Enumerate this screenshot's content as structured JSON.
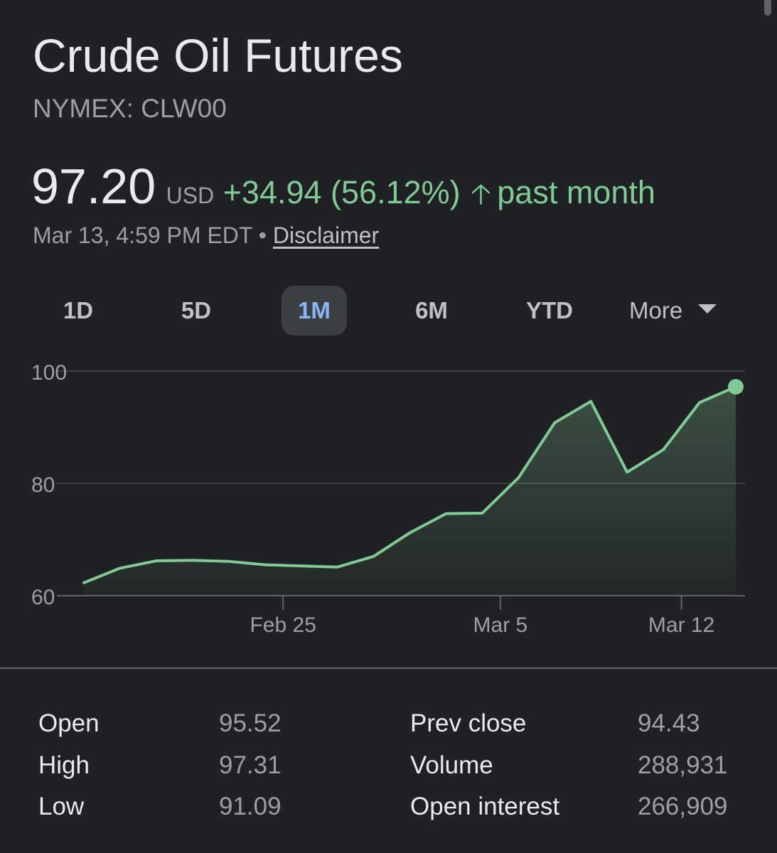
{
  "header": {
    "title": "Crude Oil Futures",
    "ticker": "NYMEX: CLW00"
  },
  "quote": {
    "price": "97.20",
    "currency": "USD",
    "change": "+34.94 (56.12%)",
    "direction_icon": "arrow-up-icon",
    "period": "past month",
    "timestamp": "Mar 13, 4:59 PM EDT",
    "separator": "•",
    "disclaimer": "Disclaimer"
  },
  "range_tabs": {
    "items": [
      "1D",
      "5D",
      "1M",
      "6M",
      "YTD"
    ],
    "active": "1M",
    "more_label": "More",
    "more_icon": "caret-down-icon"
  },
  "colors": {
    "background": "#202124",
    "positive": "#81c995",
    "active_tab_text": "#8ab4f8",
    "active_tab_bg": "#3c4043"
  },
  "chart_data": {
    "type": "area",
    "y_ticks": [
      "100",
      "80",
      "60"
    ],
    "x_tick_labels": [
      "Feb 25",
      "Mar 5",
      "Mar 12"
    ],
    "ylim": [
      60,
      100
    ],
    "grid": true,
    "series": [
      {
        "values": [
          62.3,
          64.9,
          66.2,
          66.3,
          66.1,
          65.5,
          65.3,
          65.1,
          67.0,
          71.2,
          74.6,
          74.7,
          81.0,
          90.8,
          94.6,
          82.0,
          86.0,
          94.4,
          97.2
        ]
      }
    ]
  },
  "stats": {
    "left": [
      {
        "label": "Open",
        "value": "95.52"
      },
      {
        "label": "High",
        "value": "97.31"
      },
      {
        "label": "Low",
        "value": "91.09"
      }
    ],
    "right": [
      {
        "label": "Prev close",
        "value": "94.43"
      },
      {
        "label": "Volume",
        "value": "288,931"
      },
      {
        "label": "Open interest",
        "value": "266,909"
      }
    ]
  }
}
